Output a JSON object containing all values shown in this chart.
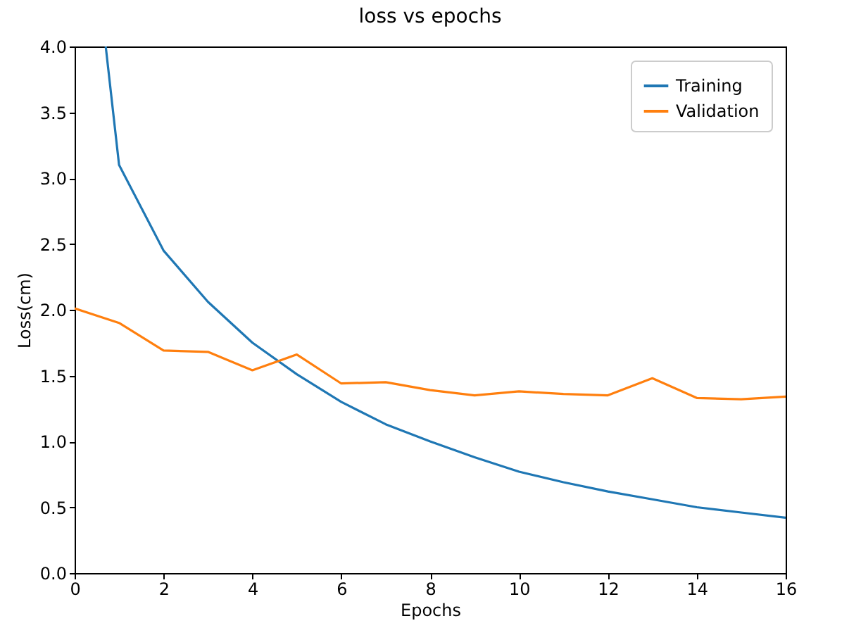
{
  "chart_data": {
    "type": "line",
    "title": "loss vs epochs",
    "xlabel": "Epochs",
    "ylabel": "Loss(cm)",
    "xlim": [
      0,
      16
    ],
    "xticks": [
      0,
      2,
      4,
      6,
      8,
      10,
      12,
      14,
      16
    ],
    "ylim": [
      0,
      4.0
    ],
    "yticks": [
      {
        "value": 0,
        "label": "0.0"
      },
      0.5,
      {
        "value": 1,
        "label": "1.0"
      },
      1.5,
      {
        "value": 2,
        "label": "2.0"
      },
      2.5,
      {
        "value": 3,
        "label": "3.0"
      },
      3.5,
      {
        "value": 4,
        "label": "4.0"
      }
    ],
    "series": [
      {
        "name": "Training",
        "color": "#1f77b4",
        "x": [
          0.7,
          1,
          2,
          3,
          4,
          5,
          6,
          7,
          8,
          9,
          10,
          11,
          12,
          13,
          14,
          15,
          16
        ],
        "values": [
          4.0,
          3.1,
          2.45,
          2.06,
          1.75,
          1.51,
          1.3,
          1.13,
          1.0,
          0.88,
          0.77,
          0.69,
          0.62,
          0.56,
          0.5,
          0.46,
          0.42
        ]
      },
      {
        "name": "Validation",
        "color": "#ff7f0e",
        "x": [
          0,
          1,
          2,
          3,
          4,
          5,
          6,
          7,
          8,
          9,
          10,
          11,
          12,
          13,
          14,
          15,
          16
        ],
        "values": [
          2.01,
          1.9,
          1.69,
          1.68,
          1.54,
          1.66,
          1.44,
          1.45,
          1.39,
          1.35,
          1.38,
          1.36,
          1.35,
          1.48,
          1.33,
          1.32,
          1.34
        ]
      }
    ],
    "legend": "top right",
    "grid": false,
    "marker": "none",
    "line_style": "solid"
  }
}
